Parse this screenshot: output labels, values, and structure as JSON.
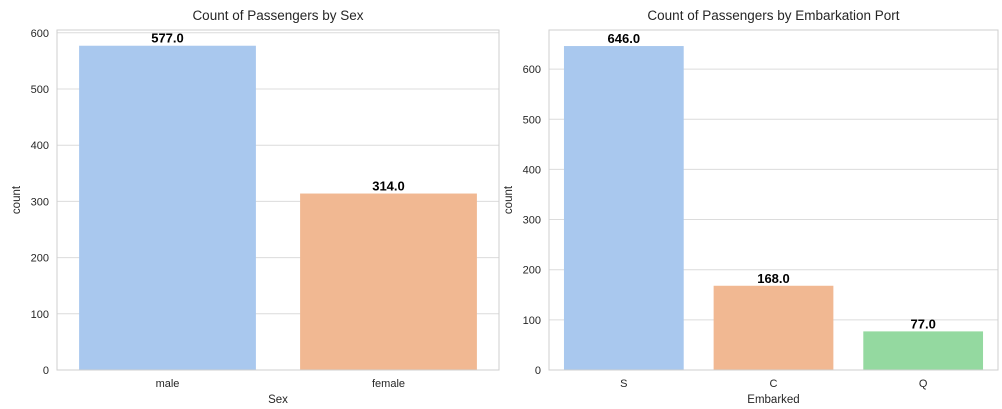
{
  "chart_data": [
    {
      "type": "bar",
      "title": "Count of Passengers by Sex",
      "xlabel": "Sex",
      "ylabel": "count",
      "categories": [
        "male",
        "female"
      ],
      "values": [
        577,
        314
      ],
      "data_labels": [
        "577.0",
        "314.0"
      ],
      "colors": [
        "#a9c8ee",
        "#f1b892"
      ],
      "ylim": [
        0,
        605
      ],
      "yticks": [
        0,
        100,
        200,
        300,
        400,
        500,
        600
      ],
      "grid": true
    },
    {
      "type": "bar",
      "title": "Count of Passengers by Embarkation Port",
      "xlabel": "Embarked",
      "ylabel": "count",
      "categories": [
        "S",
        "C",
        "Q"
      ],
      "values": [
        646,
        168,
        77
      ],
      "data_labels": [
        "646.0",
        "168.0",
        "77.0"
      ],
      "colors": [
        "#a9c8ee",
        "#f1b892",
        "#94d9a0"
      ],
      "ylim": [
        0,
        678
      ],
      "yticks": [
        0,
        100,
        200,
        300,
        400,
        500,
        600
      ],
      "grid": true
    }
  ]
}
